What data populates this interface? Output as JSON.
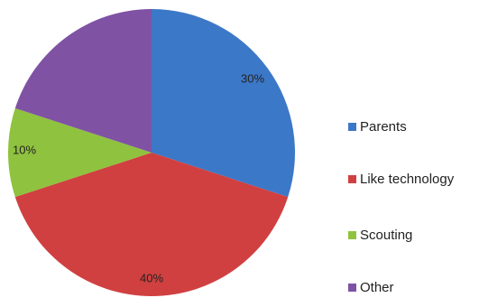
{
  "chart_data": {
    "type": "pie",
    "slices": [
      {
        "name": "Parents",
        "value": 30,
        "label": "30%",
        "color": "#3c78c8"
      },
      {
        "name": "Like technology",
        "value": 40,
        "label": "40%",
        "color": "#d04040"
      },
      {
        "name": "Scouting",
        "value": 10,
        "label": "10%",
        "color": "#8fc23e"
      },
      {
        "name": "Other",
        "value": 20,
        "label": "",
        "color": "#7f52a4"
      }
    ],
    "start_angle": "12 o'clock",
    "direction": "clockwise",
    "legend_position": "right"
  }
}
